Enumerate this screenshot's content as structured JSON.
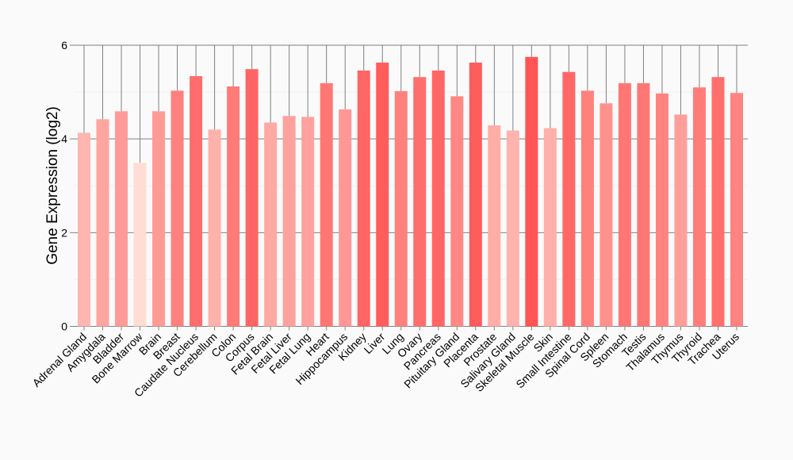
{
  "chart_data": {
    "type": "bar",
    "title": "",
    "xlabel": "",
    "ylabel": "Gene Expression (log2)",
    "ylim": [
      0,
      6
    ],
    "yticks": [
      "0",
      "2",
      "4",
      "6"
    ],
    "grid": true,
    "color_low": "#FFDDD4",
    "color_high": "#FF5555",
    "categories": [
      "Adrenal Gland",
      "Amygdala",
      "Bladder",
      "Bone Marrow",
      "Brain",
      "Breast",
      "Caudate Nucleus",
      "Cerebellum",
      "Colon",
      "Corpus",
      "Fetal Brain",
      "Fetal Liver",
      "Fetal Lung",
      "Heart",
      "Hippocampus",
      "Kidney",
      "Liver",
      "Lung",
      "Ovary",
      "Pancreas",
      "Pituitary Gland",
      "Placenta",
      "Prostate",
      "Salivary Gland",
      "Skeletal Muscle",
      "Skin",
      "Small Intestine",
      "Spinal Cord",
      "Spleen",
      "Stomach",
      "Testis",
      "Thalamus",
      "Thymus",
      "Thyroid",
      "Trachea",
      "Uterus"
    ],
    "values": [
      4.13,
      4.42,
      4.59,
      3.49,
      4.59,
      5.03,
      5.34,
      4.2,
      5.12,
      5.49,
      4.35,
      4.49,
      4.47,
      5.19,
      4.63,
      5.46,
      5.63,
      5.02,
      5.32,
      5.46,
      4.91,
      5.63,
      4.29,
      4.18,
      5.75,
      4.23,
      5.43,
      5.03,
      4.76,
      5.19,
      5.19,
      4.97,
      4.52,
      5.1,
      5.32,
      4.98
    ]
  }
}
